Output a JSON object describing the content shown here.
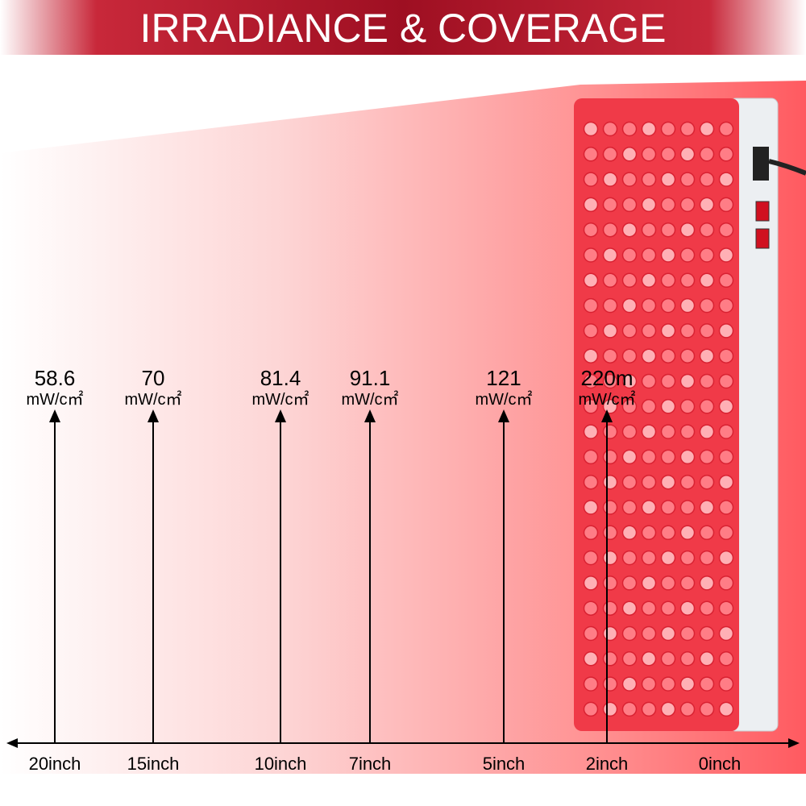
{
  "title": "IRRADIANCE & COVERAGE",
  "measurements": [
    {
      "value": "58.6",
      "unit": "mW/c㎡",
      "distance": "20inch"
    },
    {
      "value": "70",
      "unit": "mW/c㎡",
      "distance": "15inch"
    },
    {
      "value": "81.4",
      "unit": "mW/c㎡",
      "distance": "10inch"
    },
    {
      "value": "91.1",
      "unit": "mW/c㎡",
      "distance": "7inch"
    },
    {
      "value": "121",
      "unit": "mW/c㎡",
      "distance": "5inch"
    },
    {
      "value": "220m",
      "unit": "mW/c㎡",
      "distance": "2inch"
    }
  ],
  "origin_label": "0inch"
}
